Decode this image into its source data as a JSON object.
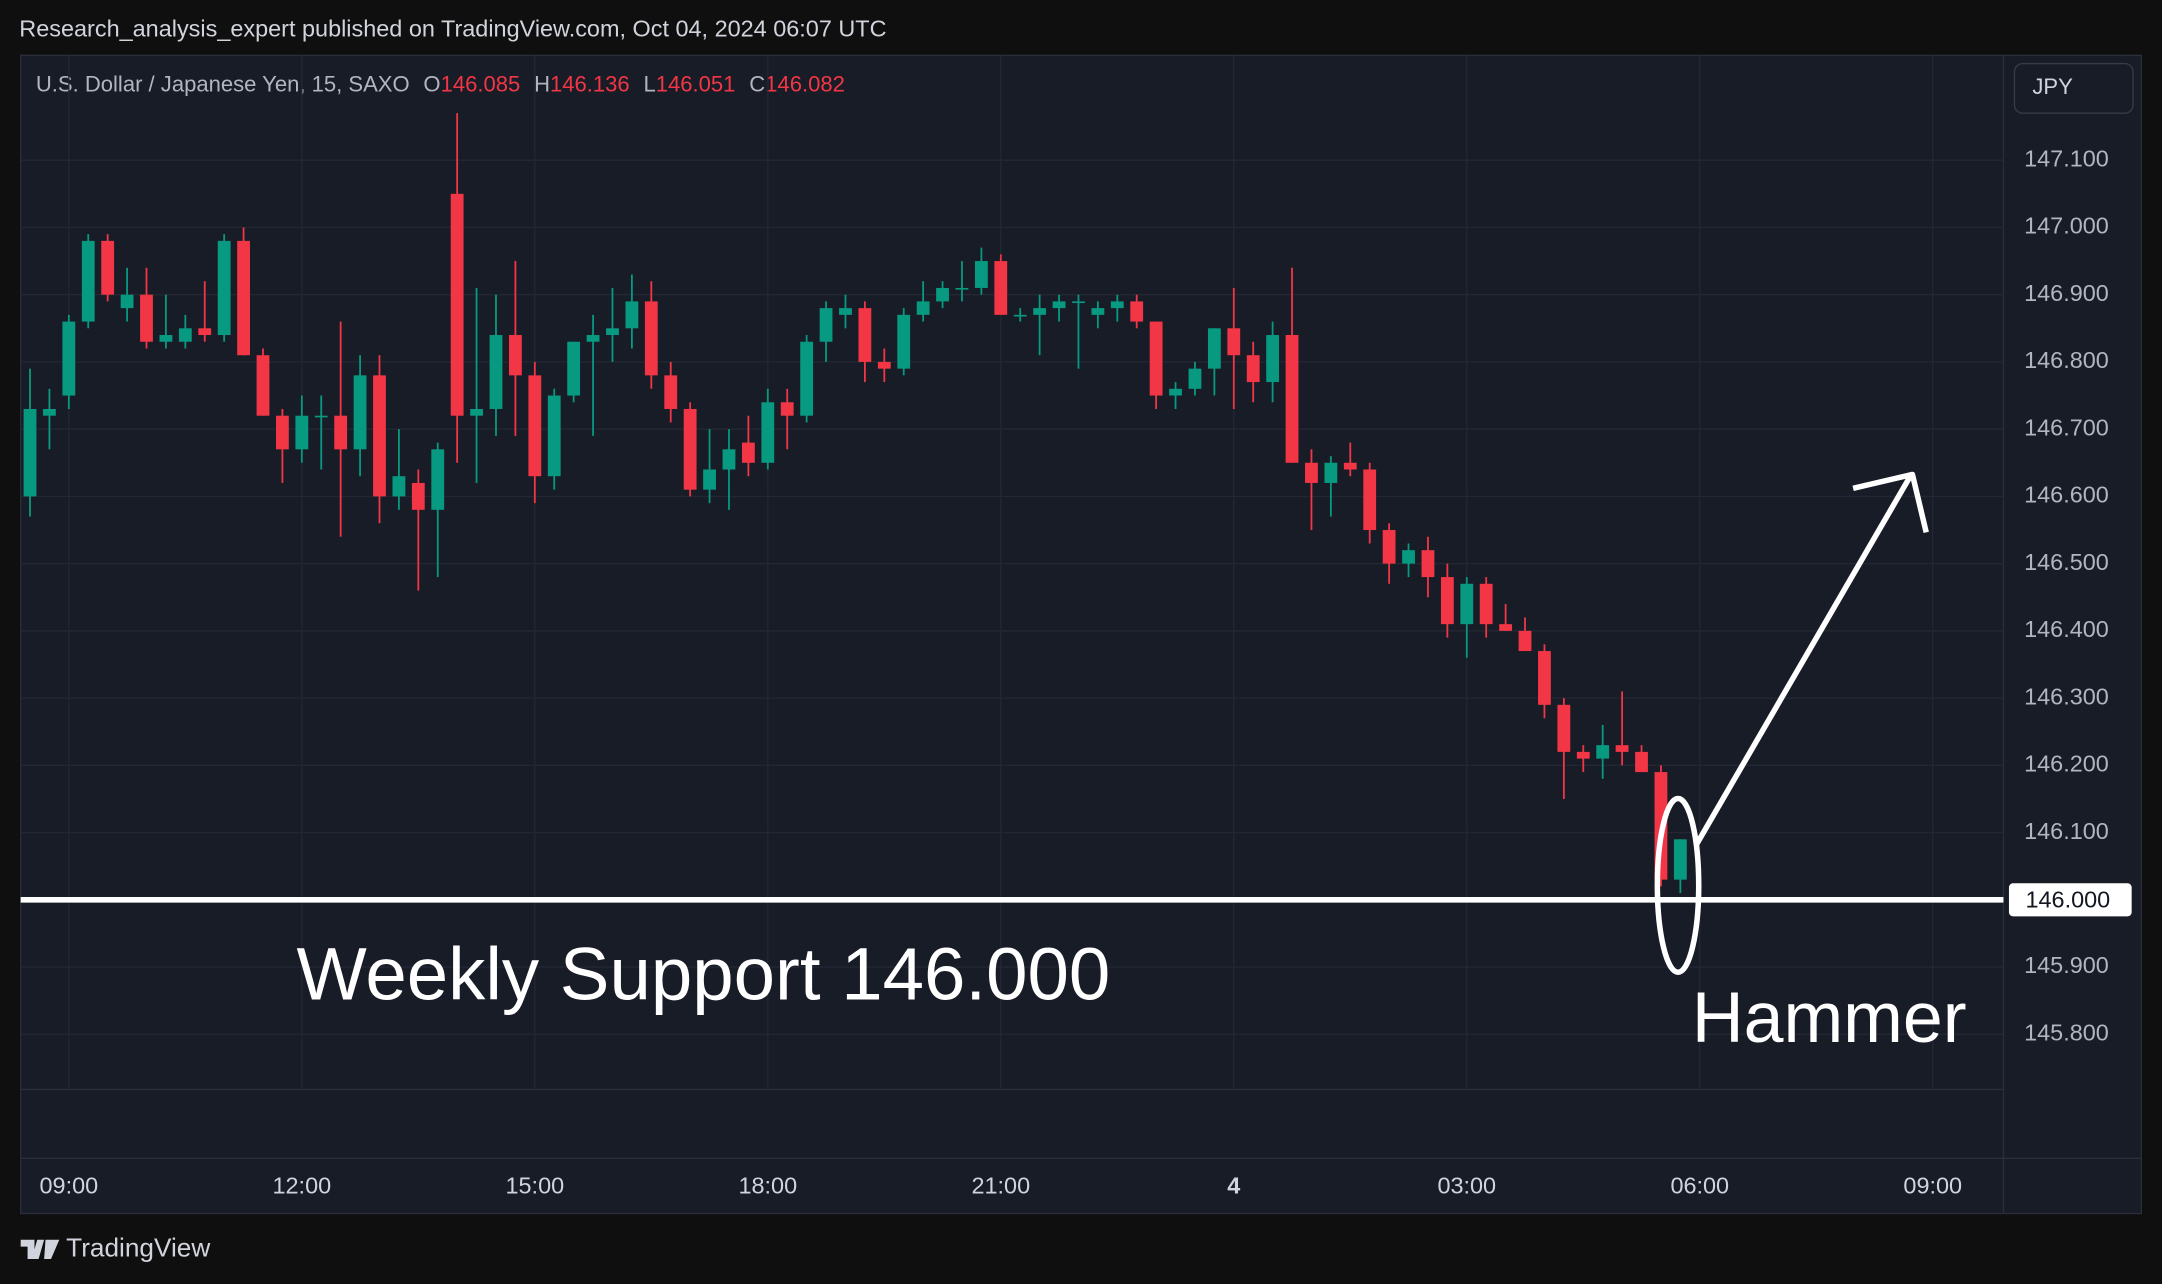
{
  "header": {
    "publisher": "Research_analysis_expert published on TradingView.com, Oct 04, 2024 06:07 UTC",
    "symbol": "U.S. Dollar / Japanese Yen, 15, SAXO",
    "ohlc": [
      {
        "key": "O",
        "value": "146.085"
      },
      {
        "key": "H",
        "value": "146.136"
      },
      {
        "key": "L",
        "value": "146.051"
      },
      {
        "key": "C",
        "value": "146.082"
      }
    ],
    "currency": "JPY"
  },
  "footer": {
    "brand": "TradingView"
  },
  "chart_data": {
    "type": "candlestick",
    "up_color": "#089981",
    "down_color": "#f23645",
    "grid": true,
    "x": [
      8.5,
      8.75,
      9,
      9.25,
      9.5,
      9.75,
      10,
      10.25,
      10.5,
      10.75,
      11,
      11.25,
      11.5,
      11.75,
      12,
      12.25,
      12.5,
      12.75,
      13,
      13.25,
      13.5,
      13.75,
      14,
      14.25,
      14.5,
      14.75,
      15,
      15.25,
      15.5,
      15.75,
      16,
      16.25,
      16.5,
      16.75,
      17,
      17.25,
      17.5,
      17.75,
      18,
      18.25,
      18.5,
      18.75,
      19,
      19.25,
      19.5,
      19.75,
      20,
      20.25,
      20.5,
      20.75,
      21,
      21.25,
      21.5,
      21.75,
      22,
      22.25,
      22.5,
      22.75,
      23,
      23.25,
      23.5,
      23.75,
      24,
      24.25,
      24.5,
      24.75,
      25,
      25.25,
      25.5,
      25.75,
      26,
      26.25,
      26.5,
      26.75,
      27,
      27.25,
      27.5,
      27.75,
      28,
      28.25,
      28.5,
      28.75,
      29,
      29.25,
      29.5,
      29.75
    ],
    "open": [
      146.6,
      146.72,
      146.75,
      146.86,
      146.98,
      146.88,
      146.9,
      146.83,
      146.83,
      146.85,
      146.84,
      146.98,
      146.81,
      146.72,
      146.67,
      146.72,
      146.72,
      146.67,
      146.78,
      146.6,
      146.62,
      146.58,
      147.05,
      146.72,
      146.73,
      146.84,
      146.78,
      146.63,
      146.75,
      146.83,
      146.84,
      146.85,
      146.89,
      146.78,
      146.73,
      146.61,
      146.64,
      146.68,
      146.65,
      146.74,
      146.72,
      146.83,
      146.87,
      146.88,
      146.8,
      146.79,
      146.87,
      146.89,
      146.91,
      146.91,
      146.95,
      146.87,
      146.87,
      146.88,
      146.89,
      146.87,
      146.88,
      146.89,
      146.86,
      146.75,
      146.76,
      146.79,
      146.85,
      146.81,
      146.77,
      146.84,
      146.65,
      146.62,
      146.65,
      146.64,
      146.55,
      146.5,
      146.52,
      146.48,
      146.41,
      146.47,
      146.41,
      146.4,
      146.37,
      146.29,
      146.22,
      146.21,
      146.23,
      146.22,
      146.19,
      146.03
    ],
    "high": [
      146.79,
      146.76,
      146.87,
      146.99,
      146.99,
      146.94,
      146.94,
      146.9,
      146.87,
      146.92,
      146.99,
      147.0,
      146.82,
      146.73,
      146.75,
      146.75,
      146.86,
      146.81,
      146.81,
      146.7,
      146.64,
      146.68,
      147.17,
      146.91,
      146.9,
      146.95,
      146.8,
      146.76,
      146.83,
      146.87,
      146.91,
      146.93,
      146.92,
      146.8,
      146.74,
      146.7,
      146.7,
      146.72,
      146.76,
      146.76,
      146.84,
      146.89,
      146.9,
      146.89,
      146.82,
      146.88,
      146.92,
      146.92,
      146.95,
      146.97,
      146.96,
      146.88,
      146.9,
      146.9,
      146.9,
      146.89,
      146.9,
      146.9,
      146.86,
      146.77,
      146.8,
      146.85,
      146.91,
      146.83,
      146.86,
      146.94,
      146.67,
      146.66,
      146.68,
      146.65,
      146.56,
      146.53,
      146.54,
      146.5,
      146.48,
      146.48,
      146.44,
      146.42,
      146.38,
      146.3,
      146.23,
      146.26,
      146.31,
      146.23,
      146.2,
      146.09
    ],
    "low": [
      146.57,
      146.67,
      146.73,
      146.85,
      146.89,
      146.86,
      146.82,
      146.82,
      146.82,
      146.83,
      146.83,
      146.81,
      146.72,
      146.62,
      146.65,
      146.64,
      146.54,
      146.63,
      146.56,
      146.58,
      146.46,
      146.48,
      146.65,
      146.62,
      146.69,
      146.69,
      146.59,
      146.61,
      146.74,
      146.69,
      146.8,
      146.82,
      146.76,
      146.71,
      146.6,
      146.59,
      146.58,
      146.63,
      146.64,
      146.67,
      146.71,
      146.8,
      146.85,
      146.77,
      146.77,
      146.78,
      146.86,
      146.88,
      146.89,
      146.9,
      146.87,
      146.86,
      146.81,
      146.86,
      146.79,
      146.85,
      146.86,
      146.85,
      146.73,
      146.73,
      146.75,
      146.75,
      146.73,
      146.74,
      146.74,
      146.65,
      146.55,
      146.57,
      146.63,
      146.53,
      146.47,
      146.48,
      146.45,
      146.39,
      146.36,
      146.39,
      146.4,
      146.37,
      146.27,
      146.15,
      146.19,
      146.18,
      146.2,
      146.19,
      146.02,
      146.01
    ],
    "close": [
      146.73,
      146.73,
      146.86,
      146.98,
      146.9,
      146.9,
      146.83,
      146.84,
      146.85,
      146.84,
      146.98,
      146.81,
      146.72,
      146.67,
      146.72,
      146.72,
      146.67,
      146.78,
      146.6,
      146.63,
      146.58,
      146.67,
      146.72,
      146.73,
      146.84,
      146.78,
      146.63,
      146.75,
      146.83,
      146.84,
      146.85,
      146.89,
      146.78,
      146.73,
      146.61,
      146.64,
      146.67,
      146.65,
      146.74,
      146.72,
      146.83,
      146.88,
      146.88,
      146.8,
      146.79,
      146.87,
      146.89,
      146.91,
      146.91,
      146.95,
      146.87,
      146.87,
      146.88,
      146.89,
      146.89,
      146.88,
      146.89,
      146.86,
      146.75,
      146.76,
      146.79,
      146.85,
      146.81,
      146.77,
      146.84,
      146.65,
      146.62,
      146.65,
      146.64,
      146.55,
      146.5,
      146.52,
      146.48,
      146.41,
      146.47,
      146.41,
      146.4,
      146.37,
      146.29,
      146.22,
      146.21,
      146.23,
      146.22,
      146.19,
      146.03,
      146.09
    ],
    "xlim": [
      8.38,
      33.91
    ],
    "xticks": [
      {
        "value": 9,
        "label": "09:00"
      },
      {
        "value": 12,
        "label": "12:00"
      },
      {
        "value": 15,
        "label": "15:00"
      },
      {
        "value": 18,
        "label": "18:00"
      },
      {
        "value": 21,
        "label": "21:00"
      },
      {
        "value": 24,
        "label": "4"
      },
      {
        "value": 27,
        "label": "03:00"
      },
      {
        "value": 30,
        "label": "06:00"
      },
      {
        "value": 33,
        "label": "09:00"
      }
    ],
    "ylim": [
      145.718,
      147.256
    ],
    "yticks": [
      {
        "value": 145.8,
        "label": "145.800"
      },
      {
        "value": 145.9,
        "label": "145.900"
      },
      {
        "value": 146.1,
        "label": "146.100"
      },
      {
        "value": 146.2,
        "label": "146.200"
      },
      {
        "value": 146.3,
        "label": "146.300"
      },
      {
        "value": 146.4,
        "label": "146.400"
      },
      {
        "value": 146.5,
        "label": "146.500"
      },
      {
        "value": 146.6,
        "label": "146.600"
      },
      {
        "value": 146.7,
        "label": "146.700"
      },
      {
        "value": 146.8,
        "label": "146.800"
      },
      {
        "value": 146.9,
        "label": "146.900"
      },
      {
        "value": 147.0,
        "label": "147.000"
      },
      {
        "value": 147.1,
        "label": "147.100"
      }
    ],
    "support": {
      "value": 146.0,
      "label": "146.000",
      "text": "Weekly Support 146.000"
    },
    "annotations": [
      "Hammer"
    ]
  }
}
